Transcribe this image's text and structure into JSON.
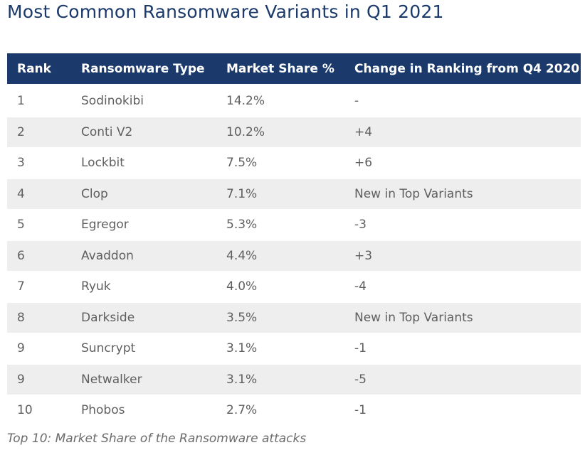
{
  "title": "Most Common Ransomware Variants in Q1 2021",
  "table": {
    "headers": [
      "Rank",
      "Ransomware Type",
      "Market Share %",
      "Change in Ranking from Q4 2020"
    ],
    "rows": [
      [
        "1",
        "Sodinokibi",
        "14.2%",
        "-"
      ],
      [
        "2",
        "Conti V2",
        "10.2%",
        "+4"
      ],
      [
        "3",
        "Lockbit",
        "7.5%",
        "+6"
      ],
      [
        "4",
        "Clop",
        "7.1%",
        "New in Top Variants"
      ],
      [
        "5",
        "Egregor",
        "5.3%",
        "-3"
      ],
      [
        "6",
        "Avaddon",
        "4.4%",
        "+3"
      ],
      [
        "7",
        "Ryuk",
        "4.0%",
        "-4"
      ],
      [
        "8",
        "Darkside",
        "3.5%",
        "New in Top Variants"
      ],
      [
        "9",
        "Suncrypt",
        "3.1%",
        "-1"
      ],
      [
        "9",
        "Netwalker",
        "3.1%",
        "-5"
      ],
      [
        "10",
        "Phobos",
        "2.7%",
        "-1"
      ]
    ]
  },
  "caption": "Top 10: Market Share of the Ransomware attacks",
  "colors": {
    "header_bg": "#1b3a6b",
    "title": "#1b3a6b",
    "stripe": "#eeeeee",
    "cell_text": "#5f5f5f"
  }
}
